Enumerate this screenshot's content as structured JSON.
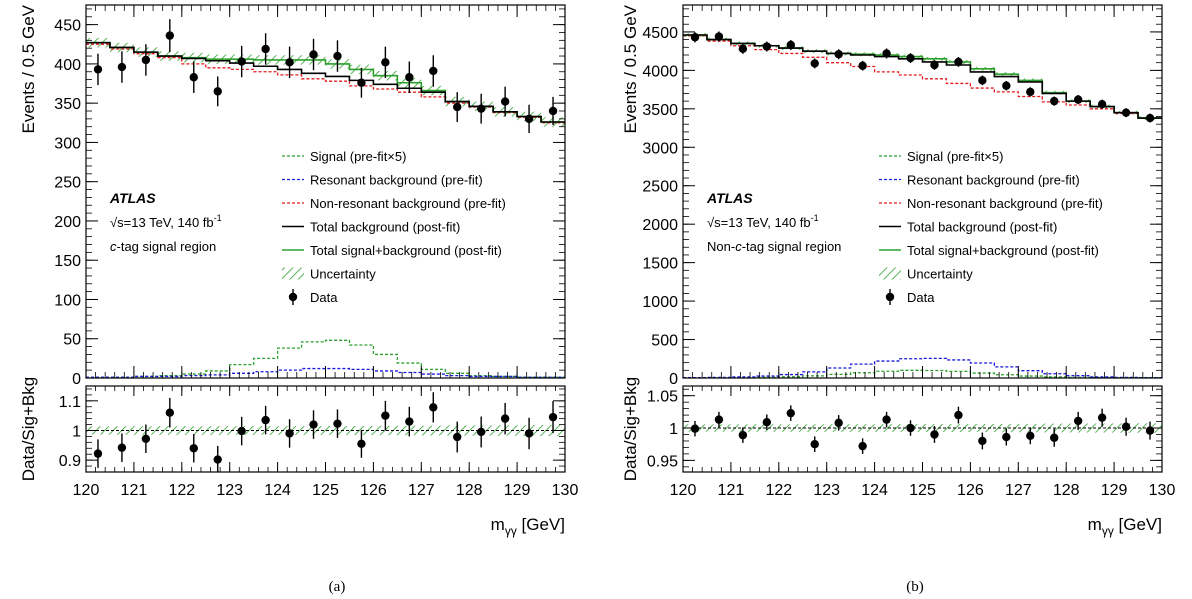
{
  "chart_data": [
    {
      "type": "line",
      "caption": "(a)",
      "xlabel_main": "m",
      "xlabel_sub": "γγ",
      "xlabel_unit": " [GeV]",
      "ylabel": "Events / 0.5 GeV",
      "ratio_ylabel": "Data/Sig+Bkg",
      "xlim": [
        120,
        130
      ],
      "ylim": [
        0,
        475
      ],
      "ratio_ylim": [
        0.86,
        1.15
      ],
      "xticks": [
        120,
        121,
        122,
        123,
        124,
        125,
        126,
        127,
        128,
        129,
        130
      ],
      "yticks": [
        0,
        50,
        100,
        150,
        200,
        250,
        300,
        350,
        400,
        450
      ],
      "ratio_yticks": [
        0.9,
        1,
        1.1
      ],
      "ratio_ytick_labels": [
        "0.9",
        "1",
        "1.1"
      ],
      "info": {
        "experiment": "ATLAS",
        "energy_prefix": "√s=13 TeV, 140 fb",
        "energy_sup": "-1",
        "region_prefix": "",
        "region_italic": "c",
        "region_suffix": "-tag signal region"
      },
      "legend": [
        {
          "label": "Signal (pre-fit×5)",
          "style": "dash",
          "color": "#2ca02c"
        },
        {
          "label": "Resonant background (pre-fit)",
          "style": "dash",
          "color": "#1a1adc"
        },
        {
          "label": "Non-resonant background (pre-fit)",
          "style": "dash",
          "color": "#e41a1c"
        },
        {
          "label": "Total background (post-fit)",
          "style": "solid",
          "color": "#000000"
        },
        {
          "label": "Total signal+background (post-fit)",
          "style": "solid",
          "color": "#2ca02c"
        },
        {
          "label": "Uncertainty",
          "style": "hatch",
          "color": "#2ca02c"
        },
        {
          "label": "Data",
          "style": "marker",
          "color": "#000000"
        }
      ],
      "bin_edges_step": 0.5,
      "data": {
        "x": [
          120.25,
          120.75,
          121.25,
          121.75,
          122.25,
          122.75,
          123.25,
          123.75,
          124.25,
          124.75,
          125.25,
          125.75,
          126.25,
          126.75,
          127.25,
          127.75,
          128.25,
          128.75,
          129.25,
          129.75
        ],
        "y": [
          393,
          396,
          405,
          436,
          383,
          365,
          403,
          419,
          402,
          412,
          410,
          376,
          402,
          383,
          391,
          345,
          343,
          352,
          330,
          340
        ],
        "err": [
          20,
          20,
          20,
          21,
          20,
          19,
          20,
          20,
          20,
          20,
          20,
          19,
          20,
          20,
          20,
          19,
          19,
          19,
          18,
          18
        ]
      },
      "total_bkg_postfit": [
        427,
        421,
        415,
        410,
        407,
        404,
        401,
        397,
        393,
        388,
        384,
        379,
        374,
        369,
        364,
        352,
        346,
        339,
        333,
        326
      ],
      "total_sig_bkg_postfit": [
        427,
        421,
        415,
        410,
        408,
        406,
        406,
        405,
        405,
        405,
        400,
        393,
        385,
        376,
        366,
        352,
        346,
        339,
        333,
        326
      ],
      "uncertainty": 6,
      "nonres_bkg_prefit": [
        425,
        419,
        413,
        408,
        400,
        395,
        393,
        390,
        386,
        381,
        378,
        372,
        368,
        364,
        358,
        350,
        345,
        338,
        332,
        325
      ],
      "signal_prefit_x5": [
        1,
        1,
        2,
        3,
        5,
        9,
        17,
        25,
        38,
        46,
        48,
        42,
        30,
        19,
        11,
        6,
        3,
        2,
        1,
        1
      ],
      "resonant_bkg_prefit": [
        1,
        1,
        2,
        2,
        3,
        4,
        6,
        8,
        10,
        12,
        12,
        11,
        9,
        7,
        5,
        3,
        2,
        2,
        1,
        1
      ],
      "ratio": {
        "y": [
          0.922,
          0.942,
          0.972,
          1.06,
          0.94,
          0.902,
          0.998,
          1.035,
          0.99,
          1.02,
          1.023,
          0.955,
          1.05,
          1.03,
          1.078,
          0.978,
          0.995,
          1.04,
          0.99,
          1.045
        ],
        "err": [
          0.048,
          0.048,
          0.048,
          0.05,
          0.048,
          0.046,
          0.048,
          0.048,
          0.048,
          0.048,
          0.048,
          0.047,
          0.05,
          0.05,
          0.051,
          0.052,
          0.052,
          0.053,
          0.053,
          0.054
        ]
      }
    },
    {
      "type": "line",
      "caption": "(b)",
      "xlabel_main": "m",
      "xlabel_sub": "γγ",
      "xlabel_unit": " [GeV]",
      "ylabel": "Events / 0.5 GeV",
      "ratio_ylabel": "Data/Sig+Bkg",
      "xlim": [
        120,
        130
      ],
      "ylim": [
        0,
        4850
      ],
      "ratio_ylim": [
        0.932,
        1.065
      ],
      "xticks": [
        120,
        121,
        122,
        123,
        124,
        125,
        126,
        127,
        128,
        129,
        130
      ],
      "yticks": [
        0,
        500,
        1000,
        1500,
        2000,
        2500,
        3000,
        3500,
        4000,
        4500
      ],
      "ratio_yticks": [
        0.95,
        1,
        1.05
      ],
      "ratio_ytick_labels": [
        "0.95",
        "1",
        "1.05"
      ],
      "info": {
        "experiment": "ATLAS",
        "energy_prefix": "√s=13 TeV, 140 fb",
        "energy_sup": "-1",
        "region_prefix": "Non-",
        "region_italic": "c",
        "region_suffix": "-tag signal region"
      },
      "legend": [
        {
          "label": "Signal (pre-fit×5)",
          "style": "dash",
          "color": "#2ca02c"
        },
        {
          "label": "Resonant background (pre-fit)",
          "style": "dash",
          "color": "#1a1adc"
        },
        {
          "label": "Non-resonant background (pre-fit)",
          "style": "dash",
          "color": "#e41a1c"
        },
        {
          "label": "Total background (post-fit)",
          "style": "solid",
          "color": "#000000"
        },
        {
          "label": "Total signal+background (post-fit)",
          "style": "solid",
          "color": "#2ca02c"
        },
        {
          "label": "Uncertainty",
          "style": "hatch",
          "color": "#2ca02c"
        },
        {
          "label": "Data",
          "style": "marker",
          "color": "#000000"
        }
      ],
      "bin_edges_step": 0.5,
      "data": {
        "x": [
          120.25,
          120.75,
          121.25,
          121.75,
          122.25,
          122.75,
          123.25,
          123.75,
          124.25,
          124.75,
          125.25,
          125.75,
          126.25,
          126.75,
          127.25,
          127.75,
          128.25,
          128.75,
          129.25,
          129.75
        ],
        "y": [
          4430,
          4440,
          4280,
          4310,
          4330,
          4090,
          4210,
          4060,
          4220,
          4160,
          4070,
          4110,
          3870,
          3800,
          3720,
          3600,
          3620,
          3560,
          3450,
          3380
        ],
        "err": [
          66,
          66,
          65,
          65,
          65,
          64,
          65,
          63,
          65,
          64,
          64,
          64,
          62,
          62,
          61,
          60,
          60,
          60,
          59,
          58
        ]
      },
      "total_bkg_postfit": [
        4460,
        4400,
        4350,
        4320,
        4290,
        4250,
        4220,
        4200,
        4180,
        4150,
        4110,
        4070,
        3980,
        3920,
        3850,
        3700,
        3600,
        3530,
        3450,
        3380
      ],
      "total_sig_bkg_postfit": [
        4460,
        4400,
        4350,
        4320,
        4290,
        4250,
        4220,
        4210,
        4200,
        4180,
        4150,
        4110,
        4020,
        3950,
        3870,
        3710,
        3600,
        3530,
        3450,
        3380
      ],
      "uncertainty": 25,
      "nonres_bkg_prefit": [
        4450,
        4380,
        4320,
        4270,
        4220,
        4170,
        4100,
        4050,
        3980,
        3940,
        3890,
        3830,
        3770,
        3720,
        3660,
        3590,
        3550,
        3500,
        3440,
        3380
      ],
      "signal_prefit_x5": [
        2,
        3,
        5,
        9,
        16,
        28,
        47,
        68,
        88,
        100,
        98,
        86,
        64,
        42,
        25,
        14,
        7,
        4,
        2,
        1
      ],
      "resonant_bkg_prefit": [
        5,
        8,
        14,
        25,
        45,
        80,
        130,
        180,
        220,
        250,
        255,
        235,
        195,
        145,
        95,
        55,
        30,
        15,
        8,
        4
      ],
      "ratio": {
        "y": [
          0.999,
          1.013,
          0.989,
          1.009,
          1.023,
          0.975,
          1.008,
          0.972,
          1.013,
          1.0,
          0.99,
          1.02,
          0.98,
          0.986,
          0.988,
          0.985,
          1.011,
          1.016,
          1.002,
          0.996
        ],
        "err": [
          0.012,
          0.012,
          0.012,
          0.012,
          0.012,
          0.012,
          0.012,
          0.012,
          0.012,
          0.012,
          0.013,
          0.013,
          0.013,
          0.013,
          0.013,
          0.014,
          0.014,
          0.014,
          0.014,
          0.014
        ]
      }
    }
  ]
}
